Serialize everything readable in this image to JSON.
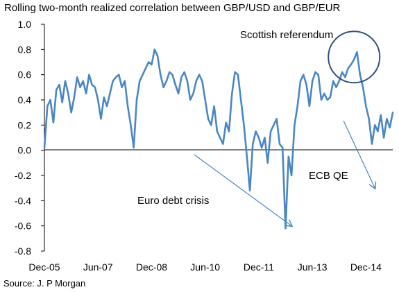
{
  "chart_data": {
    "type": "line",
    "title": "Rolling two-month realized correlation between GBP/USD and GBP/EUR",
    "source": "Source:  J. P Morgan",
    "xlabel": "",
    "ylabel": "",
    "ylim": [
      -0.8,
      1.0
    ],
    "yticks": [
      "1.0",
      "0.8",
      "0.6",
      "0.4",
      "0.2",
      "0.0",
      "-0.2",
      "-0.4",
      "-0.6",
      "-0.8"
    ],
    "xticks": [
      "Dec-05",
      "Jun-07",
      "Dec-08",
      "Jun-10",
      "Dec-11",
      "Jun-13",
      "Dec-14"
    ],
    "grid": false,
    "series": [
      {
        "color": "#4a86c5",
        "x": [
          "2005-12",
          "2006-01",
          "2006-02",
          "2006-03",
          "2006-04",
          "2006-05",
          "2006-06",
          "2006-07",
          "2006-08",
          "2006-09",
          "2006-10",
          "2006-11",
          "2006-12",
          "2007-01",
          "2007-02",
          "2007-03",
          "2007-04",
          "2007-05",
          "2007-06",
          "2007-07",
          "2007-08",
          "2007-09",
          "2007-10",
          "2007-11",
          "2007-12",
          "2008-01",
          "2008-02",
          "2008-03",
          "2008-04",
          "2008-05",
          "2008-06",
          "2008-07",
          "2008-08",
          "2008-09",
          "2008-10",
          "2008-11",
          "2008-12",
          "2009-01",
          "2009-02",
          "2009-03",
          "2009-04",
          "2009-05",
          "2009-06",
          "2009-07",
          "2009-08",
          "2009-09",
          "2009-10",
          "2009-11",
          "2009-12",
          "2010-01",
          "2010-02",
          "2010-03",
          "2010-04",
          "2010-05",
          "2010-06",
          "2010-07",
          "2010-08",
          "2010-09",
          "2010-10",
          "2010-11",
          "2010-12",
          "2011-01",
          "2011-02",
          "2011-03",
          "2011-04",
          "2011-05",
          "2011-06",
          "2011-07",
          "2011-08",
          "2011-09",
          "2011-10",
          "2011-11",
          "2011-12",
          "2012-01",
          "2012-02",
          "2012-03",
          "2012-04",
          "2012-05",
          "2012-06",
          "2012-07",
          "2012-08",
          "2012-09",
          "2012-10",
          "2012-11",
          "2012-12",
          "2013-01",
          "2013-02",
          "2013-03",
          "2013-04",
          "2013-05",
          "2013-06",
          "2013-07",
          "2013-08",
          "2013-09",
          "2013-10",
          "2013-11",
          "2013-12",
          "2014-01",
          "2014-02",
          "2014-03",
          "2014-04",
          "2014-05",
          "2014-06",
          "2014-07",
          "2014-08",
          "2014-09",
          "2014-10",
          "2014-11",
          "2014-12",
          "2015-01",
          "2015-02",
          "2015-03",
          "2015-04",
          "2015-05",
          "2015-06",
          "2015-07",
          "2015-08",
          "2015-09"
        ],
        "values": [
          0.02,
          0.35,
          0.4,
          0.22,
          0.48,
          0.52,
          0.38,
          0.55,
          0.45,
          0.3,
          0.42,
          0.58,
          0.5,
          0.55,
          0.45,
          0.6,
          0.52,
          0.5,
          0.4,
          0.25,
          0.42,
          0.35,
          0.45,
          0.55,
          0.58,
          0.6,
          0.5,
          0.55,
          0.35,
          0.2,
          0.02,
          0.4,
          0.55,
          0.6,
          0.65,
          0.7,
          0.68,
          0.8,
          0.75,
          0.6,
          0.5,
          0.55,
          0.62,
          0.6,
          0.52,
          0.45,
          0.58,
          0.62,
          0.55,
          0.4,
          0.45,
          0.55,
          0.6,
          0.55,
          0.4,
          0.25,
          0.2,
          0.35,
          0.15,
          0.1,
          0.05,
          0.22,
          0.15,
          0.45,
          0.62,
          0.6,
          0.4,
          0.2,
          -0.05,
          -0.32,
          0.05,
          0.15,
          0.1,
          0.02,
          0.1,
          -0.1,
          0.15,
          0.2,
          0.25,
          0.05,
          0.02,
          -0.62,
          -0.05,
          -0.2,
          0.2,
          0.35,
          0.55,
          0.6,
          0.52,
          0.35,
          0.55,
          0.62,
          0.6,
          0.4,
          0.45,
          0.4,
          0.42,
          0.55,
          0.5,
          0.55,
          0.62,
          0.58,
          0.65,
          0.68,
          0.72,
          0.78,
          0.6,
          0.5,
          0.35,
          0.25,
          0.05,
          0.2,
          0.15,
          0.28,
          0.1,
          0.25,
          0.18,
          0.3
        ]
      }
    ],
    "annotations": [
      {
        "text": "Scottish referendum",
        "target_x": "2014-08",
        "target_y": 0.74
      },
      {
        "text": "Euro debt crisis",
        "arrow_to_x": "2012-11",
        "arrow_to_y": -0.6
      },
      {
        "text": "ECB QE",
        "arrow_to_x": "2015-03",
        "arrow_to_y": -0.3
      }
    ]
  }
}
